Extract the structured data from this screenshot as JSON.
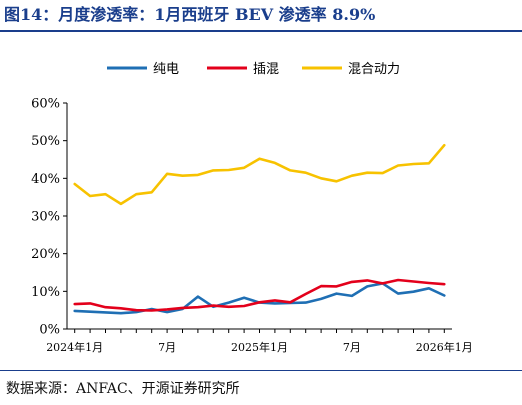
{
  "header": {
    "title": "图14：月度渗透率：1月西班牙 BEV 渗透率 8.9%"
  },
  "footer": {
    "source": "数据来源：ANFAC、开源证券研究所"
  },
  "chart_data": {
    "type": "line",
    "title": "",
    "xlabel": "",
    "ylabel": "",
    "ylim": [
      0,
      60
    ],
    "ytick_labels": [
      "0%",
      "10%",
      "20%",
      "30%",
      "40%",
      "50%",
      "60%"
    ],
    "x_tick_labels": [
      {
        "index": 0,
        "label": "2024年1月"
      },
      {
        "index": 6,
        "label": "7月"
      },
      {
        "index": 12,
        "label": "2025年1月"
      },
      {
        "index": 18,
        "label": "7月"
      },
      {
        "index": 24,
        "label": "2026年1月"
      }
    ],
    "x": [
      "2024-01",
      "2024-02",
      "2024-03",
      "2024-04",
      "2024-05",
      "2024-06",
      "2024-07",
      "2024-08",
      "2024-09",
      "2024-10",
      "2024-11",
      "2024-12",
      "2025-01",
      "2025-02",
      "2025-03",
      "2025-04",
      "2025-05",
      "2025-06",
      "2025-07",
      "2025-08",
      "2025-09",
      "2025-10",
      "2025-11",
      "2025-12",
      "2026-01"
    ],
    "legend_position": "top-center",
    "grid": false,
    "series": [
      {
        "name": "纯电",
        "color": "#1f6fb4",
        "values": [
          4.8,
          4.6,
          4.4,
          4.2,
          4.5,
          5.3,
          4.5,
          5.3,
          8.6,
          5.9,
          7.0,
          8.3,
          7.0,
          6.8,
          6.9,
          7.0,
          8.0,
          9.4,
          8.8,
          11.3,
          12.1,
          9.4,
          9.9,
          10.8,
          8.9
        ]
      },
      {
        "name": "插混",
        "color": "#e3001b",
        "values": [
          6.6,
          6.8,
          5.8,
          5.5,
          5.0,
          4.9,
          5.2,
          5.6,
          5.8,
          6.2,
          5.9,
          6.1,
          7.1,
          7.6,
          7.1,
          9.3,
          11.4,
          11.3,
          12.5,
          12.9,
          12.1,
          13.0,
          12.6,
          12.2,
          11.9
        ]
      },
      {
        "name": "混合动力",
        "color": "#f7c200",
        "values": [
          38.5,
          35.3,
          35.8,
          33.2,
          35.8,
          36.3,
          41.2,
          40.7,
          40.9,
          42.1,
          42.2,
          42.8,
          45.2,
          44.1,
          42.1,
          41.5,
          40.0,
          39.2,
          40.7,
          41.5,
          41.4,
          43.4,
          43.8,
          44.0,
          48.8
        ]
      }
    ]
  }
}
